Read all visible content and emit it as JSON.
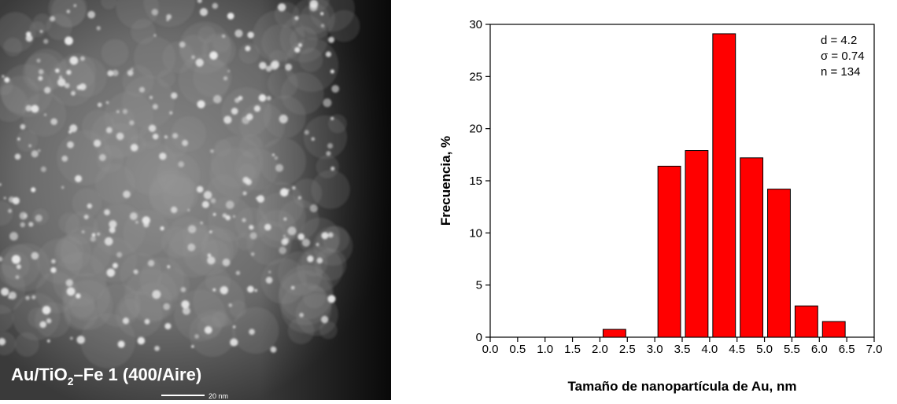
{
  "micrograph": {
    "label": {
      "prefix": "Au/TiO",
      "subscript": "2",
      "suffix": "–Fe 1 (400/Aire)"
    },
    "scale_bar": "20 nm"
  },
  "chart_data": {
    "type": "histogram",
    "xlabel": "Tamaño de nanopartícula de Au, nm",
    "ylabel": "Frecuencia, %",
    "bins": [
      2.0,
      2.5,
      3.0,
      3.5,
      4.0,
      4.5,
      5.0,
      5.5,
      6.0,
      6.5
    ],
    "counts": [
      0.75,
      0,
      16.4,
      17.9,
      29.1,
      17.2,
      14.2,
      3.0,
      1.5
    ],
    "color": "#ff0000",
    "xlim": [
      0,
      7
    ],
    "ylim": [
      0,
      30
    ],
    "xticks": [
      {
        "value": 0,
        "label": "0.0"
      },
      {
        "value": 0.5,
        "label": "0.5"
      },
      {
        "value": 1,
        "label": "1.0"
      },
      {
        "value": 1.5,
        "label": "1.5"
      },
      {
        "value": 2,
        "label": "2.0"
      },
      {
        "value": 2.5,
        "label": "2.5"
      },
      {
        "value": 3,
        "label": "3.0"
      },
      {
        "value": 3.5,
        "label": "3.5"
      },
      {
        "value": 4,
        "label": "4.0"
      },
      {
        "value": 4.5,
        "label": "4.5"
      },
      {
        "value": 5,
        "label": "5.0"
      },
      {
        "value": 5.5,
        "label": "5.5"
      },
      {
        "value": 6,
        "label": "6.0"
      },
      {
        "value": 6.5,
        "label": "6.5"
      },
      {
        "value": 7,
        "label": "7.0"
      }
    ],
    "yticks": [
      0,
      5,
      10,
      15,
      20,
      25,
      30
    ],
    "annotations": [
      "d = 4.2",
      "σ = 0.74",
      "n = 134"
    ]
  }
}
